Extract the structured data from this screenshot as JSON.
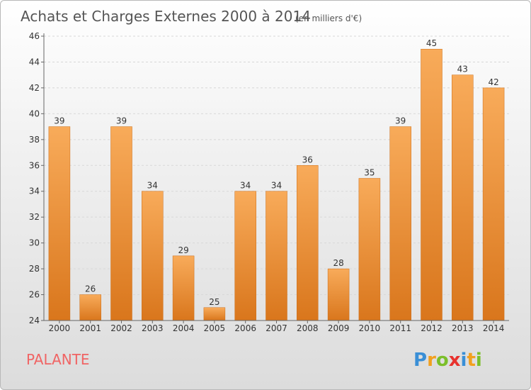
{
  "title": "Achats et Charges Externes 2000 à 2014",
  "unit": "(en milliers d'€)",
  "commune": "PALANTE",
  "logo": {
    "letters": [
      "P",
      "r",
      "o",
      "x",
      "i",
      "t",
      "i"
    ],
    "colors": [
      "#3a8fd6",
      "#f2a01e",
      "#7bbf2a",
      "#e8322e",
      "#3a8fd6",
      "#f2a01e",
      "#7bbf2a"
    ]
  },
  "colors": {
    "bar_top": "#f8ab5a",
    "bar_bottom": "#d9761c",
    "bar_stroke": "#cc6c14",
    "title": "#555555",
    "commune": "#f06464"
  },
  "chart_data": {
    "type": "bar",
    "categories": [
      "2000",
      "2001",
      "2002",
      "2003",
      "2004",
      "2005",
      "2006",
      "2007",
      "2008",
      "2009",
      "2010",
      "2011",
      "2012",
      "2013",
      "2014"
    ],
    "values": [
      39,
      26,
      39,
      34,
      29,
      25,
      34,
      34,
      36,
      28,
      35,
      39,
      45,
      43,
      42
    ],
    "ylim": [
      24,
      46
    ],
    "yticks": [
      24,
      26,
      28,
      30,
      32,
      34,
      36,
      38,
      40,
      42,
      44,
      46
    ],
    "grid": true,
    "xlabel": "",
    "ylabel": ""
  }
}
